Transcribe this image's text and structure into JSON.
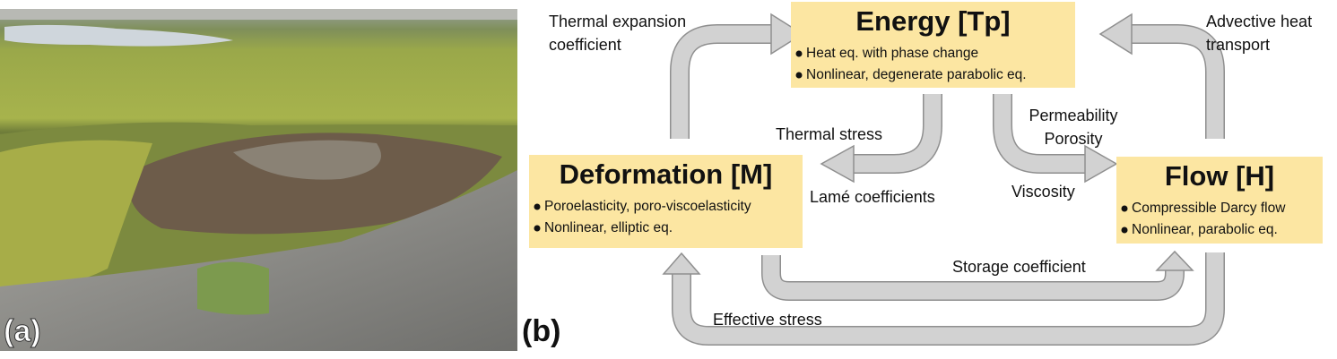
{
  "panels": {
    "a": {
      "label": "(a)"
    },
    "b": {
      "label": "(b)"
    }
  },
  "nodes": [
    {
      "title": "Energy [Tp]",
      "items": [
        "Heat eq. with phase change",
        "Nonlinear, degenerate parabolic eq."
      ]
    },
    {
      "title": "Deformation [M]",
      "items": [
        "Poroelasticity, poro-viscoelasticity",
        "Nonlinear, elliptic eq."
      ]
    },
    {
      "title": "Flow [H]",
      "items": [
        "Compressible Darcy flow",
        "Nonlinear, parabolic eq."
      ]
    }
  ],
  "edges": [
    {
      "label": [
        "Thermal expansion",
        "coefficient"
      ]
    },
    {
      "label": [
        "Advective heat",
        "transport"
      ]
    },
    {
      "label": [
        "Thermal stress"
      ]
    },
    {
      "label": [
        "Lamé coefficients"
      ]
    },
    {
      "label": [
        "Permeability",
        "Porosity"
      ]
    },
    {
      "label": [
        "Viscosity"
      ]
    },
    {
      "label": [
        "Storage coefficient"
      ]
    },
    {
      "label": [
        "Effective stress"
      ]
    }
  ]
}
